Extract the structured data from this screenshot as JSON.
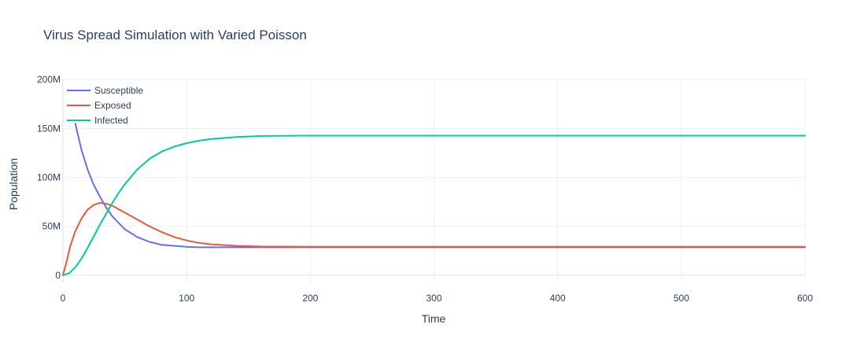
{
  "chart_data": {
    "type": "line",
    "title": "Virus Spread Simulation with Varied Poisson",
    "xlabel": "Time",
    "ylabel": "Population",
    "xlim": [
      0,
      600
    ],
    "ylim": [
      -5000000,
      201000000
    ],
    "x_ticks": [
      {
        "value": 0,
        "label": "0"
      },
      {
        "value": 100,
        "label": "100"
      },
      {
        "value": 200,
        "label": "200"
      },
      {
        "value": 300,
        "label": "300"
      },
      {
        "value": 400,
        "label": "400"
      },
      {
        "value": 500,
        "label": "500"
      },
      {
        "value": 600,
        "label": "600"
      }
    ],
    "y_ticks": [
      {
        "value": 0,
        "label": "0"
      },
      {
        "value": 50000000,
        "label": "50M"
      },
      {
        "value": 100000000,
        "label": "100M"
      },
      {
        "value": 150000000,
        "label": "150M"
      },
      {
        "value": 200000000,
        "label": "200M"
      }
    ],
    "grid": true,
    "legend_position": "top-left",
    "series": [
      {
        "name": "Susceptible",
        "color": "#636efa",
        "x": [
          10,
          15,
          20,
          25,
          30,
          35,
          40,
          50,
          60,
          70,
          80,
          90,
          100,
          110,
          120,
          140,
          160,
          200,
          300,
          400,
          500,
          600
        ],
        "y": [
          155000000,
          128000000,
          108000000,
          92000000,
          80000000,
          69000000,
          60000000,
          47000000,
          39000000,
          34000000,
          31000000,
          30000000,
          29000000,
          28500000,
          28500000,
          28500000,
          28500000,
          28500000,
          28500000,
          28500000,
          28500000,
          28500000
        ]
      },
      {
        "name": "Exposed",
        "color": "#ef553b",
        "x": [
          0,
          3,
          6,
          10,
          15,
          20,
          25,
          30,
          35,
          40,
          50,
          60,
          70,
          80,
          90,
          100,
          110,
          120,
          140,
          160,
          200,
          300,
          400,
          500,
          600
        ],
        "y": [
          0,
          14000000,
          30000000,
          45000000,
          58000000,
          67000000,
          72000000,
          74000000,
          73000000,
          71000000,
          64000000,
          57000000,
          50000000,
          44000000,
          39000000,
          35500000,
          33000000,
          31500000,
          30000000,
          29300000,
          29000000,
          29000000,
          29000000,
          29000000,
          29000000
        ]
      },
      {
        "name": "Infected",
        "color": "#00cc96",
        "x": [
          0,
          5,
          10,
          15,
          20,
          25,
          30,
          35,
          40,
          45,
          50,
          60,
          70,
          80,
          90,
          100,
          110,
          120,
          140,
          160,
          180,
          200,
          300,
          400,
          500,
          600
        ],
        "y": [
          0,
          2000000,
          8000000,
          17000000,
          28000000,
          40000000,
          52000000,
          63000000,
          74000000,
          84000000,
          93000000,
          108000000,
          119000000,
          126500000,
          131500000,
          135000000,
          137500000,
          139300000,
          141300000,
          142300000,
          142600000,
          142700000,
          142700000,
          142700000,
          142700000,
          142700000
        ]
      }
    ]
  }
}
